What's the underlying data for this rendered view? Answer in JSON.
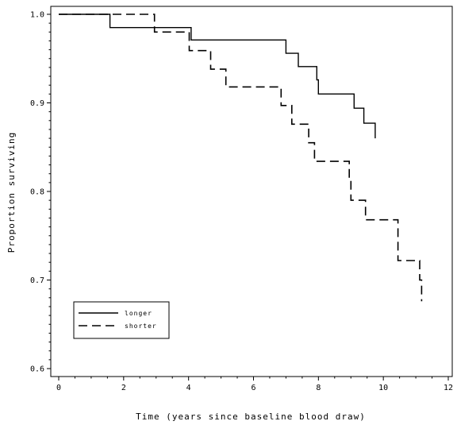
{
  "chart_data": {
    "type": "line",
    "step": true,
    "xlabel": "Time (years since baseline blood draw)",
    "ylabel": "Proportion surviving",
    "xlim": [
      0,
      12
    ],
    "ylim": [
      0.6,
      1.0
    ],
    "x_ticks": [
      0,
      2,
      4,
      6,
      8,
      10,
      12
    ],
    "y_ticks": [
      0.6,
      0.7,
      0.8,
      0.9,
      1.0
    ],
    "x_tick_labels": [
      "0",
      "2",
      "4",
      "6",
      "8",
      "10",
      "12"
    ],
    "y_tick_labels": [
      "0.6",
      "0.7",
      "0.8",
      "0.9",
      "1.0"
    ],
    "grid": false,
    "legend_position": "bottom-left",
    "series": [
      {
        "name": "longer",
        "line_style": "solid",
        "x": [
          0,
          1.58,
          4.08,
          7.0,
          7.38,
          7.95,
          8.0,
          9.1,
          9.4,
          9.75,
          9.75
        ],
        "y": [
          1.0,
          0.985,
          0.971,
          0.956,
          0.941,
          0.926,
          0.91,
          0.894,
          0.877,
          0.877,
          0.86
        ]
      },
      {
        "name": "shorter",
        "line_style": "dashed",
        "x": [
          0,
          2.95,
          4.02,
          4.68,
          5.15,
          6.85,
          7.18,
          7.7,
          7.88,
          8.95,
          9.0,
          9.45,
          10.45,
          10.88,
          11.12,
          11.18
        ],
        "y": [
          1.0,
          0.98,
          0.959,
          0.938,
          0.918,
          0.897,
          0.876,
          0.855,
          0.834,
          0.812,
          0.79,
          0.768,
          0.722,
          0.722,
          0.7,
          0.676
        ]
      }
    ]
  }
}
